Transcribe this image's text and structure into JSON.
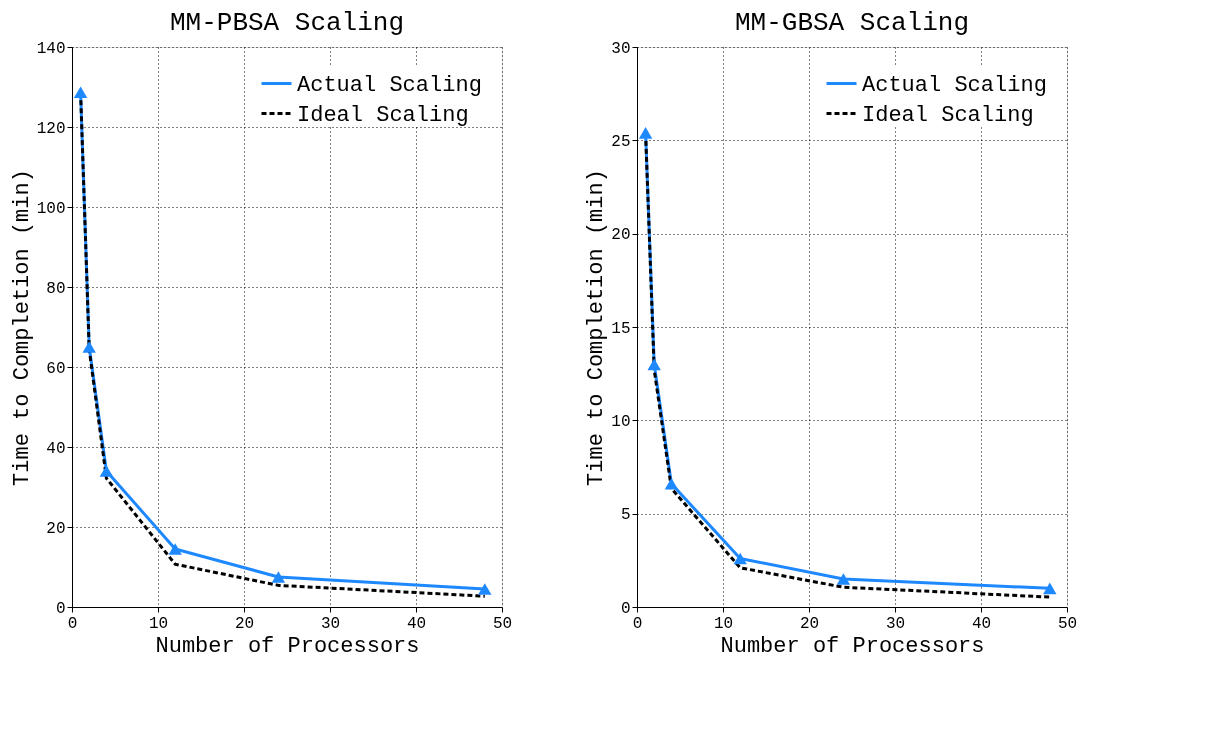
{
  "chart_data": [
    {
      "type": "line",
      "title": "MM-PBSA Scaling",
      "xlabel": "Number of Processors",
      "ylabel": "Time to Completion (min)",
      "xlim": [
        0,
        50
      ],
      "xticks": [
        0,
        10,
        20,
        30,
        40,
        50
      ],
      "ylim": [
        0,
        140
      ],
      "yticks": [
        0,
        20,
        40,
        60,
        80,
        100,
        120,
        140
      ],
      "grid": true,
      "legend": "top right",
      "series": [
        {
          "name": "Actual Scaling",
          "color": "#1e88ff",
          "marker": "triangle",
          "line_style": "solid",
          "x": [
            1,
            2,
            4,
            12,
            24,
            48
          ],
          "values": [
            128.7,
            65,
            34,
            14.5,
            7.5,
            4.5
          ]
        },
        {
          "name": "Ideal Scaling",
          "color": "#000000",
          "marker": "none",
          "line_style": "dashed",
          "x": [
            1,
            2,
            4,
            12,
            24,
            48
          ],
          "values": [
            128.7,
            64.4,
            32.2,
            10.7,
            5.4,
            2.7
          ]
        }
      ]
    },
    {
      "type": "line",
      "title": "MM-GBSA Scaling",
      "xlabel": "Number of Processors",
      "ylabel": "Time to Completion (min)",
      "xlim": [
        0,
        50
      ],
      "xticks": [
        0,
        10,
        20,
        30,
        40,
        50
      ],
      "ylim": [
        0,
        30
      ],
      "yticks": [
        0,
        5,
        10,
        15,
        20,
        25,
        30
      ],
      "grid": true,
      "legend": "top right",
      "series": [
        {
          "name": "Actual Scaling",
          "color": "#1e88ff",
          "marker": "triangle",
          "line_style": "solid",
          "x": [
            1,
            2,
            4,
            12,
            24,
            48
          ],
          "values": [
            25.4,
            13,
            6.6,
            2.6,
            1.5,
            1.0
          ]
        },
        {
          "name": "Ideal Scaling",
          "color": "#000000",
          "marker": "none",
          "line_style": "dashed",
          "x": [
            1,
            2,
            4,
            12,
            24,
            48
          ],
          "values": [
            25.4,
            12.7,
            6.35,
            2.1,
            1.06,
            0.53
          ]
        }
      ]
    }
  ]
}
